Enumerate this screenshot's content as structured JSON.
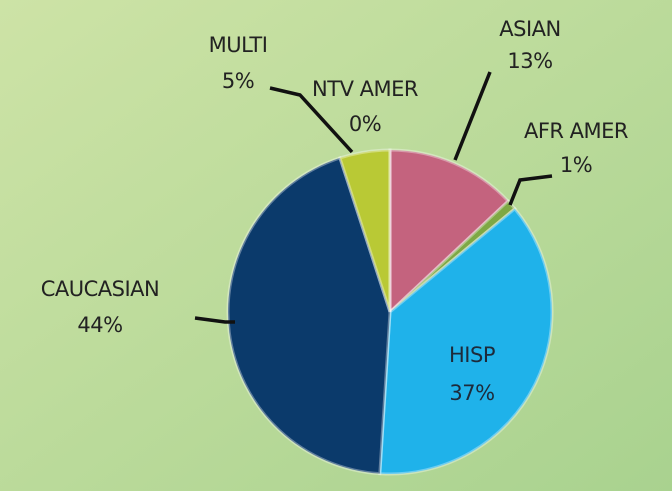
{
  "chart_data": {
    "type": "pie",
    "categories": [
      "ASIAN",
      "AFR AMER",
      "HISP",
      "CAUCASIAN",
      "MULTI",
      "NTV AMER"
    ],
    "values": [
      13,
      1,
      37,
      44,
      5,
      0
    ],
    "value_labels": [
      "13%",
      "1%",
      "37%",
      "44%",
      "5%",
      "0%"
    ],
    "colors": [
      "#c4637e",
      "#7ea844",
      "#1fb2ea",
      "#0b3a6b",
      "#b9c935",
      "#6f8f34"
    ]
  }
}
